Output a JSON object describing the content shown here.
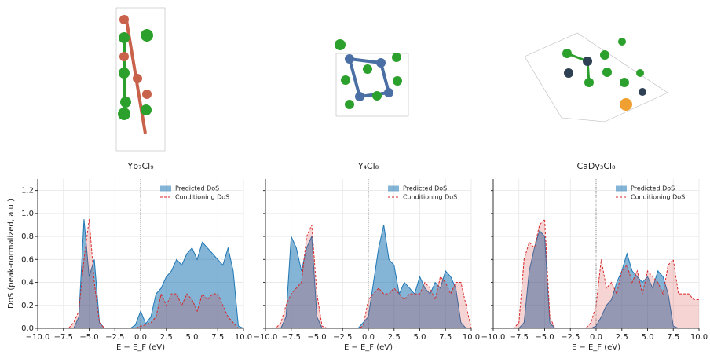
{
  "chart_data": [
    {
      "type": "area",
      "title": "Yb₇Cl₉",
      "xlabel": "E − E_F (eV)",
      "ylabel": "DoS (peak-normalized, a.u.)",
      "vline": 0,
      "grid": true,
      "legend": "upper right",
      "x": [
        -10,
        -9.5,
        -9,
        -8.5,
        -8,
        -7.5,
        -7,
        -6.5,
        -6,
        -5.5,
        -5,
        -4.5,
        -4,
        -3.5,
        -3,
        -2.5,
        -2,
        -1.5,
        -1,
        -0.5,
        0,
        0.5,
        1,
        1.5,
        2,
        2.5,
        3,
        3.5,
        4,
        4.5,
        5,
        5.5,
        6,
        6.5,
        7,
        7.5,
        8,
        8.5,
        9,
        9.5,
        10
      ],
      "series": [
        {
          "name": "Predicted DoS",
          "color": "#1f77b4",
          "values": [
            0,
            0,
            0,
            0,
            0,
            0,
            0,
            0,
            0.1,
            0.95,
            0.45,
            0.6,
            0.05,
            0,
            0,
            0,
            0,
            0,
            0,
            0.03,
            0.15,
            0.04,
            0.1,
            0.3,
            0.35,
            0.45,
            0.5,
            0.6,
            0.55,
            0.65,
            0.7,
            0.6,
            0.75,
            0.7,
            0.65,
            0.6,
            0.55,
            0.7,
            0.5,
            0.02,
            0
          ]
        },
        {
          "name": "Conditioning DoS",
          "color": "#d62728",
          "values": [
            0,
            0,
            0,
            0,
            0,
            0,
            0,
            0.05,
            0.15,
            0.6,
            0.95,
            0.4,
            0.05,
            0,
            0,
            0,
            0,
            0,
            0,
            0,
            0.02,
            0.03,
            0.05,
            0.1,
            0.3,
            0.2,
            0.3,
            0.3,
            0.2,
            0.3,
            0.25,
            0.15,
            0.3,
            0.25,
            0.3,
            0.3,
            0.2,
            0.1,
            0.05,
            0,
            0
          ]
        }
      ],
      "xlim": [
        -10,
        10
      ],
      "xticks": [
        {
          "value": -10,
          "label": "−10.0"
        },
        {
          "value": -7.5,
          "label": "−7.5"
        },
        {
          "value": -5,
          "label": "−5.0"
        },
        {
          "value": -2.5,
          "label": "−2.5"
        },
        {
          "value": 0,
          "label": "0.0"
        },
        {
          "value": 2.5,
          "label": "2.5"
        },
        {
          "value": 5,
          "label": "5.0"
        },
        {
          "value": 7.5,
          "label": "7.5"
        },
        {
          "value": 10,
          "label": "10.0"
        }
      ],
      "ylim": [
        0,
        1.3
      ],
      "yticks": [
        {
          "value": 0,
          "label": "0.0"
        },
        0.2,
        0.4,
        0.6,
        0.8,
        {
          "value": 1,
          "label": "1.0"
        },
        1.2
      ]
    },
    {
      "type": "area",
      "title": "Y₄Cl₈",
      "xlabel": "E − E_F (eV)",
      "vline": 0,
      "grid": true,
      "legend": "upper right",
      "x": [
        -10,
        -9.5,
        -9,
        -8.5,
        -8,
        -7.5,
        -7,
        -6.5,
        -6,
        -5.5,
        -5,
        -4.5,
        -4,
        -3.5,
        -3,
        -2.5,
        -2,
        -1.5,
        -1,
        -0.5,
        0,
        0.5,
        1,
        1.5,
        2,
        2.5,
        3,
        3.5,
        4,
        4.5,
        5,
        5.5,
        6,
        6.5,
        7,
        7.5,
        8,
        8.5,
        9,
        9.5,
        10
      ],
      "series": [
        {
          "name": "Predicted DoS",
          "color": "#1f77b4",
          "values": [
            0,
            0,
            0,
            0,
            0.1,
            0.8,
            0.7,
            0.5,
            0.7,
            0.8,
            0.1,
            0,
            0,
            0,
            0,
            0,
            0,
            0,
            0,
            0.05,
            0.1,
            0.4,
            0.7,
            0.9,
            0.6,
            0.55,
            0.3,
            0.4,
            0.35,
            0.3,
            0.45,
            0.35,
            0.3,
            0.4,
            0.35,
            0.5,
            0.45,
            0.35,
            0.05,
            0,
            0
          ]
        },
        {
          "name": "Conditioning DoS",
          "color": "#d62728",
          "values": [
            0,
            0,
            0,
            0.05,
            0.2,
            0.3,
            0.35,
            0.4,
            0.8,
            0.9,
            0.3,
            0.02,
            0,
            0,
            0,
            0,
            0,
            0,
            0,
            0.02,
            0.25,
            0.3,
            0.35,
            0.3,
            0.3,
            0.35,
            0.3,
            0.25,
            0.3,
            0.3,
            0.3,
            0.4,
            0.35,
            0.25,
            0.45,
            0.4,
            0.3,
            0.4,
            0.4,
            0.2,
            0
          ]
        }
      ],
      "xlim": [
        -10,
        10
      ],
      "xticks": [
        {
          "value": -10,
          "label": "−10.0"
        },
        {
          "value": -7.5,
          "label": "−7.5"
        },
        {
          "value": -5,
          "label": "−5.0"
        },
        {
          "value": -2.5,
          "label": "−2.5"
        },
        {
          "value": 0,
          "label": "0.0"
        },
        {
          "value": 2.5,
          "label": "2.5"
        },
        {
          "value": 5,
          "label": "5.0"
        },
        {
          "value": 7.5,
          "label": "7.5"
        },
        {
          "value": 10,
          "label": "10.0"
        }
      ],
      "ylim": [
        0,
        1.3
      ]
    },
    {
      "type": "area",
      "title": "CaDy₃Cl₈",
      "xlabel": "E − E_F (eV)",
      "vline": 0,
      "grid": true,
      "legend": "upper right",
      "x": [
        -10,
        -9.5,
        -9,
        -8.5,
        -8,
        -7.5,
        -7,
        -6.5,
        -6,
        -5.5,
        -5,
        -4.5,
        -4,
        -3.5,
        -3,
        -2.5,
        -2,
        -1.5,
        -1,
        -0.5,
        0,
        0.5,
        1,
        1.5,
        2,
        2.5,
        3,
        3.5,
        4,
        4.5,
        5,
        5.5,
        6,
        6.5,
        7,
        7.5,
        8,
        8.5,
        9,
        9.5,
        10
      ],
      "series": [
        {
          "name": "Predicted DoS",
          "color": "#1f77b4",
          "values": [
            0,
            0,
            0,
            0,
            0,
            0,
            0.05,
            0.5,
            0.7,
            0.85,
            0.8,
            0.05,
            0,
            0,
            0,
            0,
            0,
            0,
            0,
            0,
            0.02,
            0.1,
            0.2,
            0.25,
            0.4,
            0.5,
            0.65,
            0.5,
            0.45,
            0.4,
            0.45,
            0.35,
            0.5,
            0.45,
            0.3,
            0.02,
            0,
            0,
            0,
            0,
            0
          ]
        },
        {
          "name": "Conditioning DoS",
          "color": "#d62728",
          "values": [
            0,
            0,
            0,
            0,
            0,
            0.05,
            0.6,
            0.75,
            0.7,
            0.9,
            0.95,
            0.1,
            0,
            0,
            0,
            0,
            0,
            0,
            0,
            0.05,
            0.2,
            0.6,
            0.35,
            0.4,
            0.3,
            0.5,
            0.55,
            0.4,
            0.5,
            0.3,
            0.5,
            0.45,
            0.4,
            0.3,
            0.55,
            0.6,
            0.3,
            0.3,
            0.3,
            0.25,
            0.25
          ]
        }
      ],
      "xlim": [
        -10,
        10
      ],
      "xticks": [
        {
          "value": -10,
          "label": "−10.0"
        },
        {
          "value": -7.5,
          "label": "−7.5"
        },
        {
          "value": -5,
          "label": "−5.0"
        },
        {
          "value": -2.5,
          "label": "−2.5"
        },
        {
          "value": 0,
          "label": "0.0"
        },
        {
          "value": 2.5,
          "label": "2.5"
        },
        {
          "value": 5,
          "label": "5.0"
        },
        {
          "value": 7.5,
          "label": "7.5"
        },
        {
          "value": 10,
          "label": "10.0"
        }
      ],
      "ylim": [
        0,
        1.3
      ]
    }
  ]
}
